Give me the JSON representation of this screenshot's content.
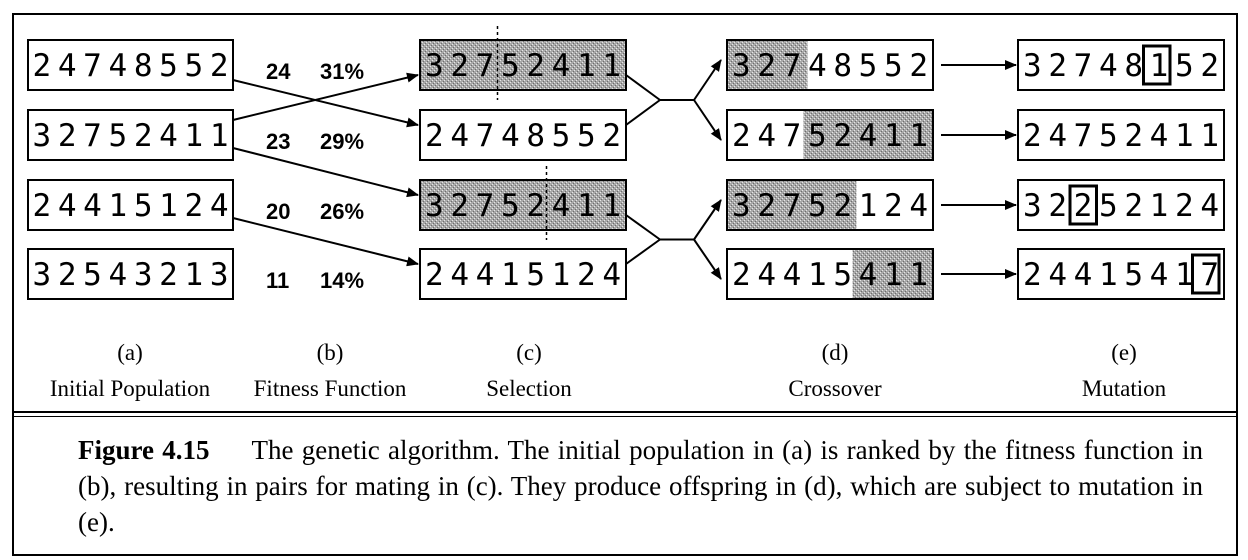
{
  "stages": [
    {
      "letter": "(a)",
      "name": "Initial Population"
    },
    {
      "letter": "(b)",
      "name": "Fitness Function"
    },
    {
      "letter": "(c)",
      "name": "Selection"
    },
    {
      "letter": "(d)",
      "name": "Crossover"
    },
    {
      "letter": "(e)",
      "name": "Mutation"
    }
  ],
  "population": [
    "24748552",
    "32752411",
    "24415124",
    "32543213"
  ],
  "fitness": [
    {
      "score": "24",
      "percent": "31%"
    },
    {
      "score": "23",
      "percent": "29%"
    },
    {
      "score": "20",
      "percent": "26%"
    },
    {
      "score": "11",
      "percent": "14%"
    }
  ],
  "selection": [
    "32752411",
    "24748552",
    "32752411",
    "24415124"
  ],
  "crossover": [
    "32748552",
    "24752411",
    "32752124",
    "24415411"
  ],
  "mutation": [
    "32748152",
    "24752411",
    "32252124",
    "24415417"
  ],
  "caption": {
    "label": "Figure 4.15",
    "text": "The genetic algorithm. The initial population in (a) is ranked by the fitness function in (b), resulting in pairs for mating in (c). They produce offspring in (d), which are subject to mutation in (e)."
  }
}
